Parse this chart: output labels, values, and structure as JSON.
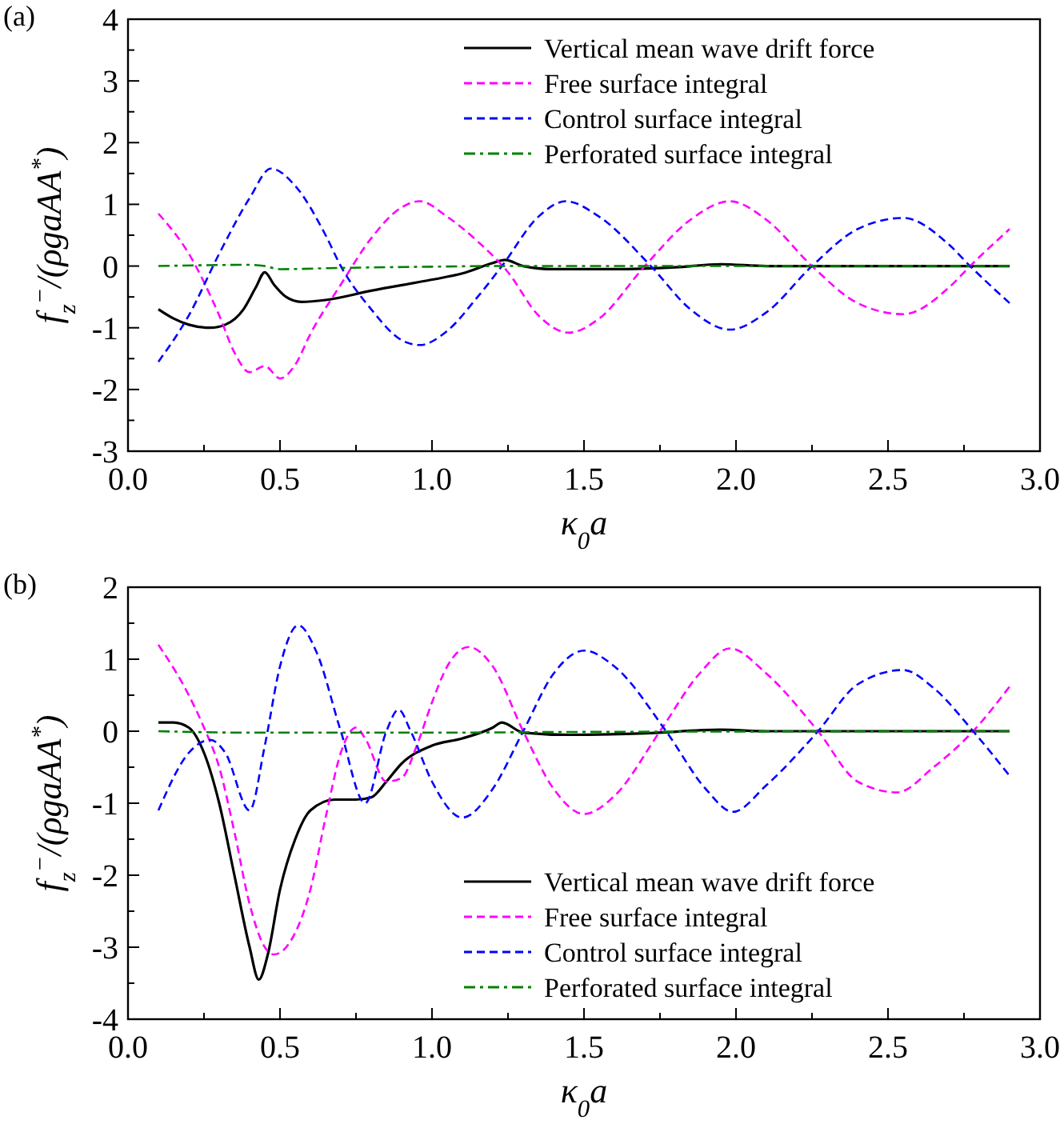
{
  "chart_data": [
    {
      "type": "line",
      "title": "(a)",
      "xlabel": "κ$_{0}$a",
      "ylabel": "f$_{z}$$^{−}$/(ρgaAA$^{*}$)",
      "legend": "top right",
      "grid": false,
      "xlim": [
        0,
        3
      ],
      "ylim": [
        -3,
        4
      ],
      "xticks": [
        {
          "value": 0,
          "label": "0.0"
        },
        {
          "value": 0.25,
          "label": null
        },
        {
          "value": 0.5,
          "label": "0.5"
        },
        {
          "value": 0.75,
          "label": null
        },
        {
          "value": 1,
          "label": "1.0"
        },
        {
          "value": 1.25,
          "label": null
        },
        {
          "value": 1.5,
          "label": "1.5"
        },
        {
          "value": 1.75,
          "label": null
        },
        {
          "value": 2,
          "label": "2.0"
        },
        {
          "value": 2.25,
          "label": null
        },
        {
          "value": 2.5,
          "label": "2.5"
        },
        {
          "value": 2.75,
          "label": null
        },
        {
          "value": 3,
          "label": "3.0"
        }
      ],
      "yticks": [
        -3,
        {
          "value": -2.5,
          "label": null
        },
        -2,
        {
          "value": -1.5,
          "label": null
        },
        -1,
        {
          "value": -0.5,
          "label": null
        },
        0,
        {
          "value": 0.5,
          "label": null
        },
        1,
        {
          "value": 1.5,
          "label": null
        },
        2,
        {
          "value": 2.5,
          "label": null
        },
        3,
        {
          "value": 3.5,
          "label": null
        },
        4
      ],
      "series": [
        {
          "name": "Vertical mean wave drift force",
          "color": "#000000",
          "line_style": "solid",
          "x": [
            0.1,
            0.15,
            0.2,
            0.27,
            0.32,
            0.38,
            0.42,
            0.45,
            0.48,
            0.52,
            0.57,
            0.65,
            0.8,
            1.0,
            1.1,
            1.2,
            1.24,
            1.3,
            1.4,
            1.6,
            1.8,
            1.95,
            2.1,
            2.5,
            2.9
          ],
          "values": [
            -0.7,
            -0.85,
            -0.95,
            -1.0,
            -0.95,
            -0.7,
            -0.35,
            -0.1,
            -0.3,
            -0.5,
            -0.58,
            -0.55,
            -0.4,
            -0.22,
            -0.12,
            0.05,
            0.1,
            0.0,
            -0.05,
            -0.05,
            -0.02,
            0.03,
            0,
            0,
            0
          ]
        },
        {
          "name": "Free surface integral",
          "color": "#ff00ff",
          "line_style": "dashed",
          "x": [
            0.1,
            0.2,
            0.3,
            0.35,
            0.4,
            0.45,
            0.5,
            0.55,
            0.6,
            0.7,
            0.8,
            0.9,
            0.96,
            1.05,
            1.15,
            1.25,
            1.35,
            1.45,
            1.55,
            1.7,
            1.85,
            1.98,
            2.1,
            2.25,
            2.4,
            2.55,
            2.7,
            2.77,
            2.9
          ],
          "values": [
            0.85,
            0.2,
            -0.8,
            -1.4,
            -1.72,
            -1.62,
            -1.82,
            -1.6,
            -1.1,
            -0.3,
            0.45,
            0.95,
            1.05,
            0.8,
            0.4,
            -0.1,
            -0.8,
            -1.08,
            -0.85,
            0.0,
            0.75,
            1.05,
            0.75,
            0.0,
            -0.6,
            -0.78,
            -0.35,
            0.0,
            0.6
          ]
        },
        {
          "name": "Control surface integral",
          "color": "#0000ff",
          "line_style": "dashed",
          "x": [
            0.1,
            0.2,
            0.3,
            0.4,
            0.47,
            0.55,
            0.65,
            0.7,
            0.8,
            0.9,
            0.96,
            1.05,
            1.15,
            1.23,
            1.35,
            1.44,
            1.55,
            1.72,
            1.85,
            1.98,
            2.1,
            2.25,
            2.4,
            2.55,
            2.7,
            2.77,
            2.9
          ],
          "values": [
            -1.55,
            -0.8,
            0.2,
            1.1,
            1.58,
            1.3,
            0.5,
            0.0,
            -0.7,
            -1.2,
            -1.28,
            -1.05,
            -0.5,
            0.0,
            0.8,
            1.05,
            0.8,
            0.0,
            -0.7,
            -1.03,
            -0.75,
            0.0,
            0.6,
            0.78,
            0.35,
            0.0,
            -0.6
          ]
        },
        {
          "name": "Perforated surface integral",
          "color": "#008000",
          "line_style": "dashdot",
          "x": [
            0.1,
            0.4,
            0.45,
            0.5,
            0.7,
            1.0,
            1.2,
            1.5,
            2.9
          ],
          "values": [
            0,
            0.02,
            0.0,
            -0.05,
            -0.03,
            -0.01,
            0,
            0,
            0
          ]
        }
      ]
    },
    {
      "type": "line",
      "title": "(b)",
      "xlabel": "κ$_{0}$a",
      "ylabel": "f$_{z}$$^{−}$/(ρgaAA$^{*}$)",
      "legend": "bottom right",
      "grid": false,
      "xlim": [
        0,
        3
      ],
      "ylim": [
        -4,
        2
      ],
      "xticks": [
        {
          "value": 0,
          "label": "0.0"
        },
        {
          "value": 0.25,
          "label": null
        },
        {
          "value": 0.5,
          "label": "0.5"
        },
        {
          "value": 0.75,
          "label": null
        },
        {
          "value": 1,
          "label": "1.0"
        },
        {
          "value": 1.25,
          "label": null
        },
        {
          "value": 1.5,
          "label": "1.5"
        },
        {
          "value": 1.75,
          "label": null
        },
        {
          "value": 2,
          "label": "2.0"
        },
        {
          "value": 2.25,
          "label": null
        },
        {
          "value": 2.5,
          "label": "2.5"
        },
        {
          "value": 2.75,
          "label": null
        },
        {
          "value": 3,
          "label": "3.0"
        }
      ],
      "yticks": [
        -4,
        {
          "value": -3.5,
          "label": null
        },
        -3,
        {
          "value": -2.5,
          "label": null
        },
        -2,
        {
          "value": -1.5,
          "label": null
        },
        -1,
        {
          "value": -0.5,
          "label": null
        },
        0,
        {
          "value": 0.5,
          "label": null
        },
        1,
        {
          "value": 1.5,
          "label": null
        },
        2
      ],
      "series": [
        {
          "name": "Vertical mean wave drift force",
          "color": "#000000",
          "line_style": "solid",
          "x": [
            0.1,
            0.15,
            0.2,
            0.25,
            0.3,
            0.35,
            0.4,
            0.43,
            0.46,
            0.5,
            0.55,
            0.6,
            0.68,
            0.75,
            0.8,
            0.85,
            0.9,
            1.0,
            1.1,
            1.2,
            1.23,
            1.3,
            1.45,
            1.7,
            1.95,
            2.1,
            2.9
          ],
          "values": [
            0.12,
            0.12,
            0.05,
            -0.3,
            -1.0,
            -2.0,
            -3.0,
            -3.45,
            -3.1,
            -2.2,
            -1.5,
            -1.1,
            -0.95,
            -0.95,
            -0.92,
            -0.7,
            -0.45,
            -0.2,
            -0.1,
            0.05,
            0.12,
            -0.02,
            -0.05,
            -0.03,
            0.02,
            0,
            0
          ]
        },
        {
          "name": "Free surface integral",
          "color": "#ff00ff",
          "line_style": "dashed",
          "x": [
            0.1,
            0.2,
            0.25,
            0.3,
            0.35,
            0.4,
            0.45,
            0.48,
            0.55,
            0.6,
            0.65,
            0.7,
            0.75,
            0.78,
            0.85,
            0.9,
            0.95,
            1.0,
            1.05,
            1.12,
            1.2,
            1.3,
            1.4,
            1.5,
            1.6,
            1.75,
            1.88,
            1.98,
            2.1,
            2.27,
            2.4,
            2.53,
            2.65,
            2.78,
            2.9
          ],
          "values": [
            1.2,
            0.5,
            0.05,
            -0.5,
            -1.4,
            -2.4,
            -3.0,
            -3.1,
            -2.8,
            -2.2,
            -1.2,
            -0.3,
            0.05,
            -0.1,
            -0.7,
            -0.65,
            -0.2,
            0.4,
            0.9,
            1.17,
            0.9,
            0.0,
            -0.8,
            -1.15,
            -0.9,
            0.0,
            0.8,
            1.15,
            0.8,
            0.0,
            -0.7,
            -0.85,
            -0.5,
            0.0,
            0.62
          ]
        },
        {
          "name": "Control surface integral",
          "color": "#0000ff",
          "line_style": "dashed",
          "x": [
            0.1,
            0.2,
            0.27,
            0.32,
            0.4,
            0.45,
            0.5,
            0.56,
            0.62,
            0.7,
            0.78,
            0.85,
            0.89,
            0.93,
            1.0,
            1.1,
            1.2,
            1.3,
            1.4,
            1.5,
            1.6,
            1.77,
            1.9,
            1.99,
            2.1,
            2.27,
            2.4,
            2.55,
            2.65,
            2.78,
            2.9
          ],
          "values": [
            -1.1,
            -0.3,
            -0.12,
            -0.3,
            -1.1,
            -0.2,
            0.9,
            1.47,
            1.1,
            0.0,
            -1.0,
            0.0,
            0.3,
            0.0,
            -0.7,
            -1.2,
            -0.8,
            0.0,
            0.8,
            1.12,
            0.9,
            0.0,
            -0.8,
            -1.12,
            -0.75,
            0.0,
            0.65,
            0.85,
            0.6,
            0.0,
            -0.62
          ]
        },
        {
          "name": "Perforated surface integral",
          "color": "#008000",
          "line_style": "dashdot",
          "x": [
            0.1,
            0.4,
            0.7,
            1.0,
            1.5,
            2.9
          ],
          "values": [
            0,
            -0.02,
            -0.02,
            -0.02,
            -0.01,
            0
          ]
        }
      ]
    }
  ]
}
